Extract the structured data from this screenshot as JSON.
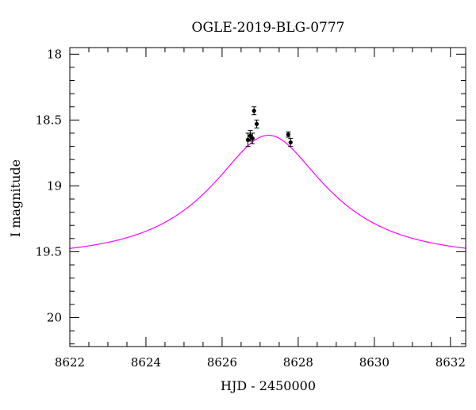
{
  "chart_data": {
    "type": "scatter",
    "title": "OGLE-2019-BLG-0777",
    "xlabel": "HJD - 2450000",
    "ylabel": "I magnitude",
    "xlim": [
      8622,
      8632.4
    ],
    "ylim": [
      20.22,
      17.95
    ],
    "y_inverted": true,
    "x_ticks": [
      8622,
      8624,
      8626,
      8628,
      8630,
      8632
    ],
    "x_tick_labels": [
      "8622",
      "8624",
      "8626",
      "8628",
      "8630",
      "8632"
    ],
    "y_ticks": [
      18,
      18.5,
      19,
      19.5,
      20
    ],
    "y_tick_labels": [
      "18",
      "18.5",
      "19",
      "19.5",
      "20"
    ],
    "x_minor_step": 0.5,
    "y_minor_step": 0.1,
    "grid": false,
    "legend": "none",
    "series": [
      {
        "kind": "points",
        "color": "#000000",
        "points": [
          {
            "x": 8626.68,
            "y": 18.65,
            "err": 0.05
          },
          {
            "x": 8626.74,
            "y": 18.62,
            "err": 0.04
          },
          {
            "x": 8626.8,
            "y": 18.64,
            "err": 0.04
          },
          {
            "x": 8626.84,
            "y": 18.43,
            "err": 0.03
          },
          {
            "x": 8626.91,
            "y": 18.53,
            "err": 0.03
          },
          {
            "x": 8627.74,
            "y": 18.61,
            "err": 0.02
          },
          {
            "x": 8627.8,
            "y": 18.67,
            "err": 0.03
          }
        ]
      },
      {
        "kind": "model",
        "color": "#ff00ff",
        "model": {
          "t0": 8627.22,
          "u0": 0.46,
          "tE": 2.7,
          "baseline": 19.54,
          "x_start": 8621.9,
          "x_end": 8632.5
        }
      }
    ]
  }
}
